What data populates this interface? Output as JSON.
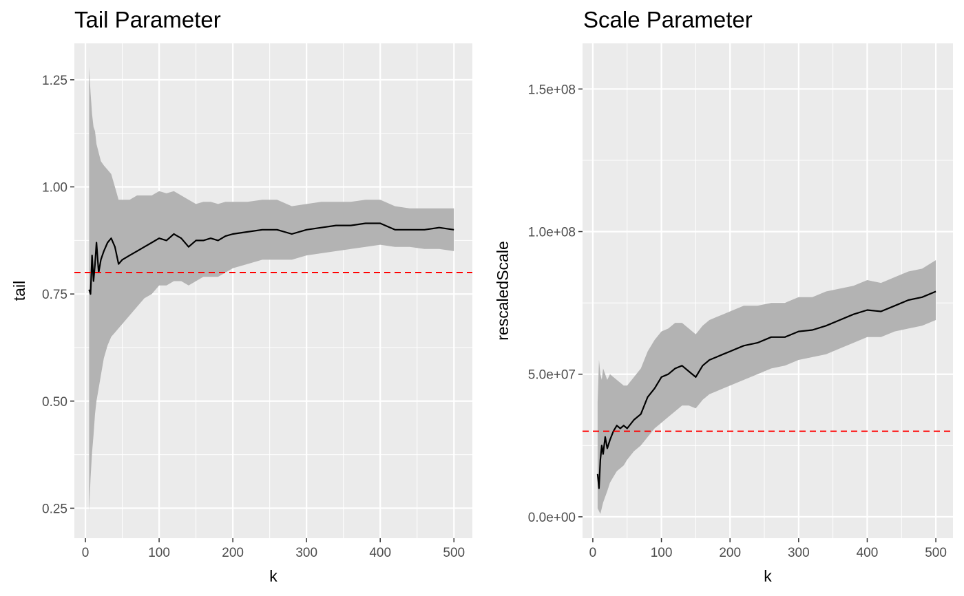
{
  "colors": {
    "panel_background": "#ebebeb",
    "grid_major": "#ffffff",
    "ribbon": "#b3b3b3",
    "line": "#000000",
    "reference_line": "#ff0000",
    "tick_label": "#4d4d4d"
  },
  "chart_data": [
    {
      "type": "line",
      "title": "Tail Parameter",
      "xlabel": "k",
      "ylabel": "tail",
      "xlim": [
        -15,
        525
      ],
      "ylim": [
        0.18,
        1.335
      ],
      "x_ticks": [
        0,
        100,
        200,
        300,
        400,
        500
      ],
      "x_tick_labels": [
        "0",
        "100",
        "200",
        "300",
        "400",
        "500"
      ],
      "y_ticks": [
        0.25,
        0.5,
        0.75,
        1.0,
        1.25
      ],
      "y_tick_labels": [
        "0.25",
        "0.50",
        "0.75",
        "1.00",
        "1.25"
      ],
      "grid": true,
      "reference_line": {
        "orientation": "horizontal",
        "y": 0.8,
        "style": "dashed"
      },
      "series": [
        {
          "k": [
            5,
            7,
            9,
            11,
            13,
            15,
            18,
            21,
            25,
            30,
            35,
            40,
            45,
            50,
            60,
            70,
            80,
            90,
            100,
            110,
            120,
            130,
            140,
            150,
            160,
            170,
            180,
            190,
            200,
            220,
            240,
            260,
            280,
            300,
            320,
            340,
            360,
            380,
            400,
            420,
            440,
            460,
            480,
            500
          ],
          "value": [
            0.76,
            0.75,
            0.84,
            0.78,
            0.82,
            0.87,
            0.8,
            0.83,
            0.85,
            0.87,
            0.88,
            0.86,
            0.82,
            0.83,
            0.84,
            0.85,
            0.86,
            0.87,
            0.88,
            0.875,
            0.89,
            0.88,
            0.86,
            0.875,
            0.875,
            0.88,
            0.875,
            0.885,
            0.89,
            0.895,
            0.9,
            0.9,
            0.89,
            0.9,
            0.905,
            0.91,
            0.91,
            0.915,
            0.915,
            0.9,
            0.9,
            0.9,
            0.905,
            0.9
          ],
          "lower": [
            0.24,
            0.32,
            0.38,
            0.42,
            0.47,
            0.5,
            0.53,
            0.56,
            0.6,
            0.63,
            0.65,
            0.66,
            0.67,
            0.68,
            0.7,
            0.72,
            0.74,
            0.75,
            0.77,
            0.77,
            0.78,
            0.78,
            0.77,
            0.78,
            0.79,
            0.79,
            0.79,
            0.8,
            0.81,
            0.82,
            0.83,
            0.83,
            0.83,
            0.84,
            0.845,
            0.85,
            0.855,
            0.86,
            0.865,
            0.86,
            0.86,
            0.855,
            0.855,
            0.85
          ],
          "upper": [
            1.28,
            1.22,
            1.17,
            1.14,
            1.13,
            1.1,
            1.08,
            1.06,
            1.05,
            1.04,
            1.03,
            1.0,
            0.97,
            0.97,
            0.97,
            0.98,
            0.98,
            0.98,
            0.99,
            0.985,
            0.99,
            0.98,
            0.97,
            0.96,
            0.965,
            0.965,
            0.96,
            0.965,
            0.965,
            0.965,
            0.97,
            0.97,
            0.955,
            0.96,
            0.965,
            0.965,
            0.965,
            0.97,
            0.97,
            0.955,
            0.95,
            0.95,
            0.95,
            0.95
          ]
        }
      ]
    },
    {
      "type": "line",
      "title": "Scale Parameter",
      "xlabel": "k",
      "ylabel": "rescaledScale",
      "xlim": [
        -15,
        525
      ],
      "ylim": [
        -7500000,
        166000000
      ],
      "x_ticks": [
        0,
        100,
        200,
        300,
        400,
        500
      ],
      "x_tick_labels": [
        "0",
        "100",
        "200",
        "300",
        "400",
        "500"
      ],
      "y_ticks": [
        0,
        50000000,
        100000000,
        150000000
      ],
      "y_tick_labels": [
        "0.0e+00",
        "5.0e+07",
        "1.0e+08",
        "1.5e+08"
      ],
      "grid": true,
      "reference_line": {
        "orientation": "horizontal",
        "y": 30000000,
        "style": "dashed"
      },
      "series": [
        {
          "k": [
            7,
            9,
            11,
            13,
            15,
            18,
            21,
            25,
            30,
            35,
            40,
            45,
            50,
            60,
            70,
            80,
            90,
            100,
            110,
            120,
            130,
            140,
            150,
            160,
            170,
            180,
            190,
            200,
            220,
            240,
            260,
            280,
            300,
            320,
            340,
            360,
            380,
            400,
            420,
            440,
            460,
            480,
            500
          ],
          "value": [
            15000000,
            10000000,
            20000000,
            25000000,
            22000000,
            28000000,
            24000000,
            27000000,
            30000000,
            32000000,
            31000000,
            32000000,
            31000000,
            34000000,
            36000000,
            42000000,
            45000000,
            49000000,
            50000000,
            52000000,
            53000000,
            51000000,
            49000000,
            53000000,
            55000000,
            56000000,
            57000000,
            58000000,
            60000000,
            61000000,
            63000000,
            63000000,
            65000000,
            65500000,
            67000000,
            69000000,
            71000000,
            72500000,
            72000000,
            74000000,
            76000000,
            77000000,
            79000000
          ],
          "lower": [
            3000000,
            2000000,
            1000000,
            3000000,
            5000000,
            7000000,
            9000000,
            12000000,
            14000000,
            16000000,
            17000000,
            18000000,
            20000000,
            23000000,
            25000000,
            28000000,
            31000000,
            33000000,
            35000000,
            37000000,
            39000000,
            39000000,
            38000000,
            41000000,
            43000000,
            44000000,
            45000000,
            46000000,
            48000000,
            50000000,
            52000000,
            53000000,
            55000000,
            56000000,
            57000000,
            59000000,
            61000000,
            63000000,
            63000000,
            65000000,
            66000000,
            67000000,
            69000000
          ],
          "upper": [
            40000000,
            55000000,
            50000000,
            48000000,
            52000000,
            50000000,
            48000000,
            50000000,
            49000000,
            48000000,
            47000000,
            46000000,
            46000000,
            49000000,
            52000000,
            58000000,
            62000000,
            65000000,
            66000000,
            68000000,
            68000000,
            66000000,
            64000000,
            67000000,
            69000000,
            70000000,
            71000000,
            72000000,
            74000000,
            74000000,
            75000000,
            75000000,
            77000000,
            77000000,
            79000000,
            80000000,
            81000000,
            83000000,
            82000000,
            84000000,
            86000000,
            87000000,
            90000000
          ]
        }
      ]
    }
  ]
}
